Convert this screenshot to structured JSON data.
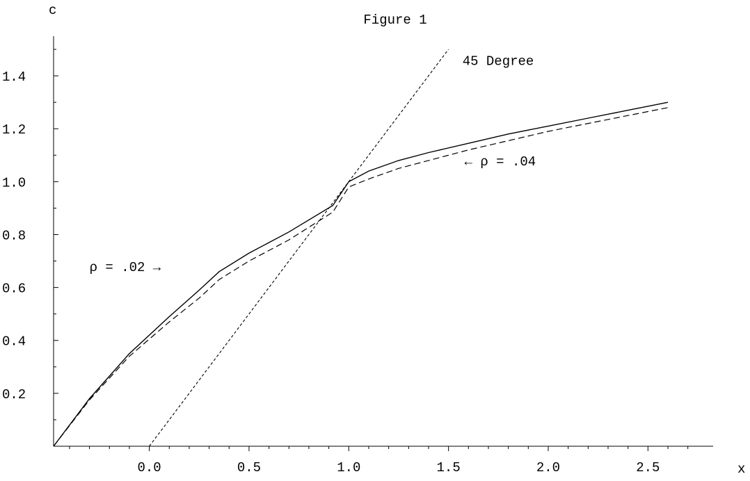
{
  "chart_data": {
    "type": "line",
    "title": "Figure 1",
    "xlabel": "x",
    "ylabel": "c",
    "xlim": [
      -0.48,
      2.75
    ],
    "ylim": [
      0,
      1.55
    ],
    "x_ticks": [
      0.0,
      0.5,
      1.0,
      1.5,
      2.0,
      2.5
    ],
    "x_tick_labels": [
      "0.0",
      "0.5",
      "1.0",
      "1.5",
      "2.0",
      "2.5"
    ],
    "y_ticks": [
      0.2,
      0.4,
      0.6,
      0.8,
      1.0,
      1.2,
      1.4
    ],
    "y_tick_labels": [
      "0.2",
      "0.4",
      "0.6",
      "0.8",
      "1.0",
      "1.2",
      "1.4"
    ],
    "grid": false,
    "series": [
      {
        "name": "ρ = .02",
        "style": "solid",
        "x": [
          -0.48,
          -0.3,
          -0.1,
          0.1,
          0.25,
          0.35,
          0.5,
          0.7,
          0.92,
          1.0,
          1.1,
          1.25,
          1.4,
          1.6,
          1.8,
          2.0,
          2.2,
          2.4,
          2.6
        ],
        "y": [
          0.0,
          0.18,
          0.35,
          0.49,
          0.59,
          0.66,
          0.73,
          0.81,
          0.91,
          1.0,
          1.04,
          1.08,
          1.11,
          1.145,
          1.18,
          1.21,
          1.24,
          1.27,
          1.3
        ]
      },
      {
        "name": "ρ = .04",
        "style": "dashed",
        "x": [
          -0.48,
          -0.3,
          -0.1,
          0.1,
          0.25,
          0.35,
          0.5,
          0.7,
          0.92,
          1.0,
          1.1,
          1.25,
          1.4,
          1.6,
          1.8,
          2.0,
          2.2,
          2.4,
          2.6
        ],
        "y": [
          0.0,
          0.175,
          0.34,
          0.47,
          0.56,
          0.63,
          0.7,
          0.78,
          0.885,
          0.98,
          1.01,
          1.05,
          1.08,
          1.12,
          1.155,
          1.19,
          1.22,
          1.25,
          1.28
        ]
      },
      {
        "name": "45 Degree",
        "style": "dotted",
        "x": [
          0.0,
          1.5
        ],
        "y": [
          0.0,
          1.5
        ]
      }
    ],
    "annotations": [
      {
        "id": "deg45",
        "text": "45 Degree",
        "x": 1.57,
        "y": 1.46
      },
      {
        "id": "rho04",
        "text": "← ρ = .04",
        "x": 1.58,
        "y": 1.08
      },
      {
        "id": "rho02",
        "text": "ρ = .02 →",
        "x": -0.3,
        "y": 0.68
      }
    ]
  }
}
